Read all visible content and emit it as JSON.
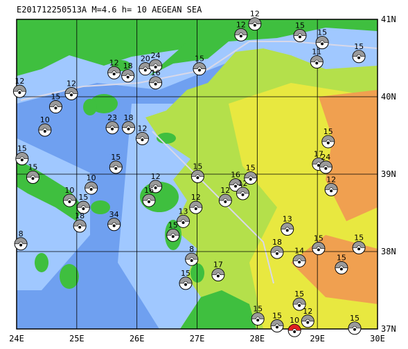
{
  "title": "E201712250513A M=4.6 h= 10 AEGEAN SEA",
  "xlim": [
    24,
    30
  ],
  "ylim": [
    37,
    41
  ],
  "xticks": [
    {
      "value": 24,
      "label": "24E"
    },
    {
      "value": 25,
      "label": "25E"
    },
    {
      "value": 26,
      "label": "26E"
    },
    {
      "value": 27,
      "label": "27E"
    },
    {
      "value": 28,
      "label": "28E"
    },
    {
      "value": 29,
      "label": "29E"
    },
    {
      "value": 30,
      "label": "30E"
    }
  ],
  "yticks": [
    {
      "value": 37,
      "label": "37N"
    },
    {
      "value": 38,
      "label": "38N"
    },
    {
      "value": 39,
      "label": "39N"
    },
    {
      "value": 40,
      "label": "40N"
    },
    {
      "value": 41,
      "label": "41N"
    }
  ],
  "main_event": {
    "lon": 28.62,
    "lat": 36.98,
    "depth": 10,
    "color": "#e02020"
  },
  "events": [
    {
      "lon": 24.05,
      "lat": 40.07,
      "depth": 12
    },
    {
      "lon": 24.65,
      "lat": 39.87,
      "depth": 15
    },
    {
      "lon": 24.91,
      "lat": 40.04,
      "depth": 12
    },
    {
      "lon": 24.47,
      "lat": 39.57,
      "depth": 10
    },
    {
      "lon": 24.09,
      "lat": 39.2,
      "depth": 15
    },
    {
      "lon": 24.27,
      "lat": 38.96,
      "depth": 15
    },
    {
      "lon": 25.24,
      "lat": 38.82,
      "depth": 10
    },
    {
      "lon": 24.88,
      "lat": 38.66,
      "depth": 10
    },
    {
      "lon": 25.11,
      "lat": 38.57,
      "depth": 15
    },
    {
      "lon": 25.05,
      "lat": 38.33,
      "depth": 18
    },
    {
      "lon": 25.62,
      "lat": 38.35,
      "depth": 34
    },
    {
      "lon": 25.65,
      "lat": 39.09,
      "depth": 15
    },
    {
      "lon": 25.59,
      "lat": 39.6,
      "depth": 23
    },
    {
      "lon": 25.86,
      "lat": 39.6,
      "depth": 18
    },
    {
      "lon": 26.09,
      "lat": 39.46,
      "depth": 12
    },
    {
      "lon": 25.62,
      "lat": 40.31,
      "depth": 12
    },
    {
      "lon": 25.85,
      "lat": 40.27,
      "depth": 18
    },
    {
      "lon": 26.14,
      "lat": 40.36,
      "depth": 20
    },
    {
      "lon": 26.31,
      "lat": 40.4,
      "depth": 24
    },
    {
      "lon": 26.31,
      "lat": 40.18,
      "depth": 16
    },
    {
      "lon": 27.04,
      "lat": 40.36,
      "depth": 15
    },
    {
      "lon": 27.73,
      "lat": 40.8,
      "depth": 12
    },
    {
      "lon": 27.96,
      "lat": 40.94,
      "depth": 12
    },
    {
      "lon": 28.71,
      "lat": 40.79,
      "depth": 15
    },
    {
      "lon": 29.08,
      "lat": 40.7,
      "depth": 15
    },
    {
      "lon": 28.99,
      "lat": 40.45,
      "depth": 11
    },
    {
      "lon": 29.69,
      "lat": 40.52,
      "depth": 15
    },
    {
      "lon": 29.18,
      "lat": 39.42,
      "depth": 15
    },
    {
      "lon": 29.02,
      "lat": 39.13,
      "depth": 17
    },
    {
      "lon": 29.14,
      "lat": 39.09,
      "depth": 24
    },
    {
      "lon": 29.23,
      "lat": 38.8,
      "depth": 12
    },
    {
      "lon": 27.01,
      "lat": 38.97,
      "depth": 15
    },
    {
      "lon": 27.64,
      "lat": 38.86,
      "depth": 16
    },
    {
      "lon": 27.76,
      "lat": 38.75,
      "depth": 12
    },
    {
      "lon": 27.47,
      "lat": 38.66,
      "depth": 12
    },
    {
      "lon": 27.89,
      "lat": 38.95,
      "depth": 15
    },
    {
      "lon": 26.98,
      "lat": 38.57,
      "depth": 12
    },
    {
      "lon": 26.31,
      "lat": 38.84,
      "depth": 12
    },
    {
      "lon": 26.2,
      "lat": 38.66,
      "depth": 16
    },
    {
      "lon": 26.6,
      "lat": 38.21,
      "depth": 15
    },
    {
      "lon": 26.77,
      "lat": 38.39,
      "depth": 13
    },
    {
      "lon": 26.91,
      "lat": 37.9,
      "depth": 8
    },
    {
      "lon": 26.81,
      "lat": 37.59,
      "depth": 15
    },
    {
      "lon": 27.35,
      "lat": 37.7,
      "depth": 17
    },
    {
      "lon": 28.5,
      "lat": 38.29,
      "depth": 13
    },
    {
      "lon": 28.33,
      "lat": 37.99,
      "depth": 18
    },
    {
      "lon": 28.7,
      "lat": 37.88,
      "depth": 14
    },
    {
      "lon": 29.02,
      "lat": 38.04,
      "depth": 15
    },
    {
      "lon": 29.4,
      "lat": 37.79,
      "depth": 15
    },
    {
      "lon": 29.69,
      "lat": 38.05,
      "depth": 15
    },
    {
      "lon": 28.7,
      "lat": 37.32,
      "depth": 15
    },
    {
      "lon": 28.01,
      "lat": 37.13,
      "depth": 15
    },
    {
      "lon": 28.33,
      "lat": 37.04,
      "depth": 15
    },
    {
      "lon": 28.84,
      "lat": 37.1,
      "depth": 12
    },
    {
      "lon": 29.62,
      "lat": 37.01,
      "depth": 15
    },
    {
      "lon": 24.07,
      "lat": 38.1,
      "depth": 8
    }
  ]
}
